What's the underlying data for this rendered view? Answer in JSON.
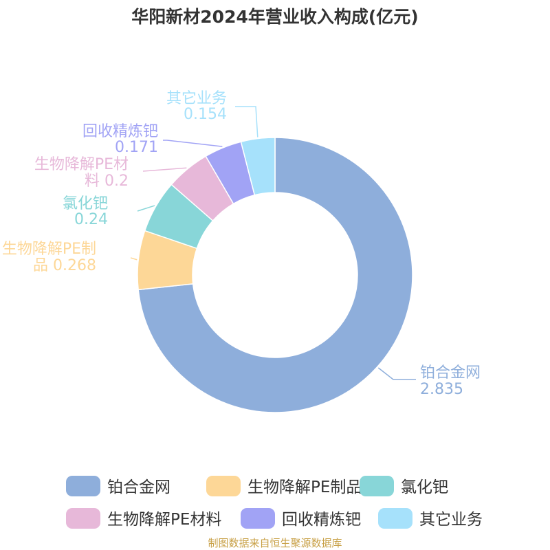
{
  "chart_data": {
    "type": "pie",
    "donut": true,
    "title": "华阳新材2024年营业收入构成(亿元)",
    "slices": [
      {
        "label": "铂合金网",
        "label_lines": [
          "铂合金网"
        ],
        "value": 2.835,
        "value_text": "2.835",
        "color": "#8eaedb"
      },
      {
        "label": "生物降解PE制品",
        "label_lines": [
          "生物降解PE制",
          "品 0.268"
        ],
        "value": 0.268,
        "value_text": "0.268",
        "color": "#fdd797"
      },
      {
        "label": "氯化钯",
        "label_lines": [
          "氯化钯"
        ],
        "value": 0.24,
        "value_text": "0.24",
        "color": "#88d6d8"
      },
      {
        "label": "生物降解PE材料",
        "label_lines": [
          "生物降解PE材",
          "料 0.2"
        ],
        "value": 0.2,
        "value_text": "0.2",
        "color": "#e7b8d9"
      },
      {
        "label": "回收精炼钯",
        "label_lines": [
          "回收精炼钯"
        ],
        "value": 0.171,
        "value_text": "0.171",
        "color": "#a1a3f5"
      },
      {
        "label": "其它业务",
        "label_lines": [
          "其它业务"
        ],
        "value": 0.154,
        "value_text": "0.154",
        "color": "#a6e1fb"
      }
    ],
    "legend_position": "bottom"
  },
  "source": "制图数据来自恒生聚源数据库"
}
